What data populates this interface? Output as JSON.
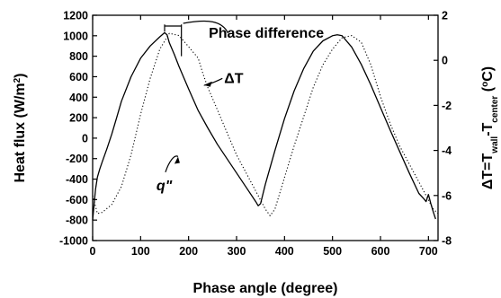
{
  "chart_data": {
    "type": "line",
    "title": "",
    "xlabel": "Phase angle (degree)",
    "ylabel_left": {
      "text": "Heat flux (W/m",
      "sup": "2",
      "close": ")"
    },
    "ylabel_right": {
      "pre": "ΔT=T",
      "sub1": "wall",
      "mid": "-T",
      "sub2": "center",
      "open": " (",
      "sup": "o",
      "unit": "C)"
    },
    "xlim": [
      0,
      720
    ],
    "ylim_left": [
      -1000,
      1200
    ],
    "ylim_right": [
      -8,
      2
    ],
    "x_ticks": [
      0,
      100,
      200,
      300,
      400,
      500,
      600,
      700
    ],
    "y_left_ticks": [
      -1000,
      -800,
      -600,
      -400,
      -200,
      0,
      200,
      400,
      600,
      800,
      1000,
      1200
    ],
    "y_right_ticks": [
      -8,
      -6,
      -4,
      -2,
      0,
      2
    ],
    "grid": false,
    "annotations": {
      "phase_difference": "Phase difference",
      "delta_t": "ΔT",
      "q_flux": "q\""
    },
    "series": [
      {
        "name": "q\"",
        "axis": "left",
        "style": "solid",
        "x": [
          0,
          3,
          6,
          10,
          15,
          20,
          30,
          40,
          50,
          60,
          80,
          100,
          120,
          140,
          150,
          155,
          160,
          170,
          180,
          200,
          220,
          240,
          260,
          280,
          300,
          320,
          340,
          345,
          350,
          360,
          380,
          400,
          420,
          440,
          460,
          480,
          500,
          510,
          520,
          540,
          560,
          580,
          600,
          620,
          640,
          660,
          680,
          690,
          695,
          700,
          705,
          710,
          715
        ],
        "y": [
          -800,
          -650,
          -500,
          -380,
          -300,
          -230,
          -100,
          40,
          200,
          360,
          600,
          780,
          900,
          990,
          1030,
          1010,
          930,
          820,
          700,
          480,
          270,
          100,
          -60,
          -200,
          -340,
          -480,
          -620,
          -660,
          -640,
          -450,
          -120,
          190,
          460,
          680,
          850,
          950,
          1000,
          1010,
          1000,
          890,
          720,
          520,
          300,
          80,
          -130,
          -340,
          -540,
          -590,
          -620,
          -550,
          -640,
          -720,
          -790
        ]
      },
      {
        "name": "ΔT",
        "axis": "right",
        "style": "dotted",
        "x": [
          0,
          10,
          20,
          40,
          60,
          80,
          100,
          120,
          140,
          160,
          180,
          200,
          220,
          230,
          240,
          260,
          280,
          300,
          320,
          340,
          360,
          370,
          380,
          400,
          420,
          440,
          460,
          480,
          500,
          520,
          540,
          560,
          580,
          600,
          620,
          640,
          660,
          680,
          700,
          710,
          720
        ],
        "y": [
          -6.0,
          -6.8,
          -6.75,
          -6.4,
          -5.6,
          -4.2,
          -2.4,
          -0.8,
          0.5,
          1.2,
          1.1,
          0.6,
          0.1,
          -0.6,
          -1.2,
          -2.2,
          -3.2,
          -4.2,
          -5.0,
          -5.8,
          -6.6,
          -6.9,
          -6.6,
          -5.2,
          -3.8,
          -2.5,
          -1.2,
          -0.2,
          0.5,
          1.0,
          1.1,
          0.8,
          -0.2,
          -1.6,
          -2.8,
          -3.8,
          -4.6,
          -5.4,
          -6.2,
          -6.6,
          -6.8
        ]
      }
    ]
  }
}
